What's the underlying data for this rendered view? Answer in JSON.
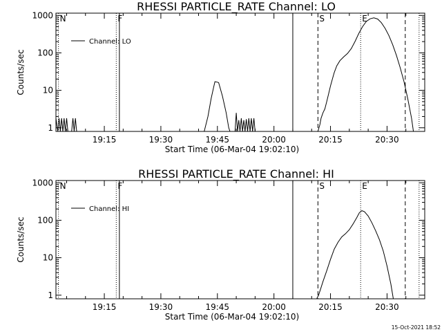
{
  "footer_stamp": "15-Oct-2021 18:52",
  "chart_data": [
    {
      "type": "line",
      "title": "RHESSI PARTICLE_RATE Channel: LO",
      "xlabel": "Start Time (06-Mar-04 19:02:10)",
      "ylabel": "Counts/sec",
      "y_scale": "log",
      "xlim": [
        "19:02:10",
        "20:40:00"
      ],
      "ylim": [
        0.8,
        1150
      ],
      "x_ticks": [
        {
          "t": "19:15",
          "label": "19:15"
        },
        {
          "t": "19:30",
          "label": "19:30"
        },
        {
          "t": "19:45",
          "label": "19:45"
        },
        {
          "t": "20:00",
          "label": "20:00"
        },
        {
          "t": "20:15",
          "label": "20:15"
        },
        {
          "t": "20:30",
          "label": "20:30"
        }
      ],
      "y_ticks": [
        {
          "v": 1,
          "label": "1"
        },
        {
          "v": 10,
          "label": "10"
        },
        {
          "v": 100,
          "label": "100"
        },
        {
          "v": 1000,
          "label": "1000"
        }
      ],
      "legend": {
        "entries": [
          "Channel: LO"
        ],
        "placement": "top-left"
      },
      "markers": [
        {
          "t": "19:02:50",
          "style": "dotted",
          "label": "N"
        },
        {
          "t": "19:18:10",
          "style": "dotted",
          "label": "F"
        },
        {
          "t": "19:19:00",
          "style": "solid",
          "label": ""
        },
        {
          "t": "20:05:00",
          "style": "solid",
          "label": ""
        },
        {
          "t": "20:11:40",
          "style": "dashed",
          "label": "S"
        },
        {
          "t": "20:23:00",
          "style": "dotted",
          "label": "E"
        },
        {
          "t": "20:34:50",
          "style": "dashed",
          "label": ""
        },
        {
          "t": "20:38:30",
          "style": "dotted",
          "label": ""
        }
      ],
      "series": [
        {
          "points": [
            [
              "19:02:10",
              1.8
            ],
            [
              "19:02:40",
              0.7
            ],
            [
              "19:03:00",
              1.8
            ],
            [
              "19:03:20",
              0.7
            ],
            [
              "19:03:40",
              1.8
            ],
            [
              "19:04:00",
              0.7
            ],
            [
              "19:04:20",
              1.8
            ],
            [
              "19:04:40",
              0.7
            ],
            [
              "19:05:00",
              1.8
            ],
            [
              "19:05:20",
              0.7
            ],
            [
              "19:06:20",
              0.7
            ],
            [
              "19:06:40",
              1.8
            ],
            [
              "19:07:00",
              0.7
            ],
            [
              "19:07:20",
              1.8
            ],
            [
              "19:07:40",
              0.7
            ],
            [
              "19:41:30",
              0.7
            ],
            [
              "19:42:30",
              2.0
            ],
            [
              "19:43:20",
              6.0
            ],
            [
              "19:44:00",
              12.0
            ],
            [
              "19:44:20",
              17.0
            ],
            [
              "19:45:00",
              16.5
            ],
            [
              "19:45:20",
              16.0
            ],
            [
              "19:46:20",
              7.0
            ],
            [
              "19:47:20",
              2.5
            ],
            [
              "19:48:00",
              1.0
            ],
            [
              "19:48:20",
              0.7
            ],
            [
              "19:49:40",
              0.7
            ],
            [
              "19:50:00",
              2.5
            ],
            [
              "19:50:20",
              0.7
            ],
            [
              "19:50:40",
              1.6
            ],
            [
              "19:51:00",
              0.7
            ],
            [
              "19:51:20",
              1.8
            ],
            [
              "19:51:40",
              0.7
            ],
            [
              "19:52:00",
              1.6
            ],
            [
              "19:52:20",
              0.7
            ],
            [
              "19:52:40",
              1.7
            ],
            [
              "19:53:00",
              0.7
            ],
            [
              "19:53:20",
              1.8
            ],
            [
              "19:53:40",
              0.7
            ],
            [
              "19:54:00",
              1.8
            ],
            [
              "19:54:20",
              0.7
            ],
            [
              "19:54:40",
              1.8
            ],
            [
              "19:55:00",
              0.7
            ],
            [
              "20:11:40",
              0.7
            ],
            [
              "20:12:10",
              1.2
            ],
            [
              "20:12:30",
              1.8
            ],
            [
              "20:13:00",
              2.5
            ],
            [
              "20:13:30",
              3.2
            ],
            [
              "20:14:00",
              5.0
            ],
            [
              "20:14:30",
              8.0
            ],
            [
              "20:15:00",
              13.0
            ],
            [
              "20:15:30",
              20.0
            ],
            [
              "20:16:00",
              30.0
            ],
            [
              "20:16:40",
              45.0
            ],
            [
              "20:17:30",
              62.0
            ],
            [
              "20:18:30",
              78.0
            ],
            [
              "20:19:30",
              96.0
            ],
            [
              "20:20:30",
              130.0
            ],
            [
              "20:21:30",
              200.0
            ],
            [
              "20:22:30",
              330.0
            ],
            [
              "20:23:30",
              500.0
            ],
            [
              "20:24:30",
              690.0
            ],
            [
              "20:25:30",
              810.0
            ],
            [
              "20:26:30",
              860.0
            ],
            [
              "20:27:30",
              800.0
            ],
            [
              "20:28:30",
              640.0
            ],
            [
              "20:29:30",
              450.0
            ],
            [
              "20:30:30",
              290.0
            ],
            [
              "20:31:30",
              165.0
            ],
            [
              "20:32:30",
              85.0
            ],
            [
              "20:33:30",
              40.0
            ],
            [
              "20:34:30",
              17.0
            ],
            [
              "20:35:30",
              6.0
            ],
            [
              "20:36:30",
              1.8
            ],
            [
              "20:37:00",
              0.7
            ]
          ]
        }
      ]
    },
    {
      "type": "line",
      "title": "RHESSI PARTICLE_RATE Channel: HI",
      "xlabel": "Start Time (06-Mar-04 19:02:10)",
      "ylabel": "Counts/sec",
      "y_scale": "log",
      "xlim": [
        "19:02:10",
        "20:40:00"
      ],
      "ylim": [
        0.8,
        1150
      ],
      "x_ticks": [
        {
          "t": "19:15",
          "label": "19:15"
        },
        {
          "t": "19:30",
          "label": "19:30"
        },
        {
          "t": "19:45",
          "label": "19:45"
        },
        {
          "t": "20:00",
          "label": "20:00"
        },
        {
          "t": "20:15",
          "label": "20:15"
        },
        {
          "t": "20:30",
          "label": "20:30"
        }
      ],
      "y_ticks": [
        {
          "v": 1,
          "label": "1"
        },
        {
          "v": 10,
          "label": "10"
        },
        {
          "v": 100,
          "label": "100"
        },
        {
          "v": 1000,
          "label": "1000"
        }
      ],
      "legend": {
        "entries": [
          "Channel: HI"
        ],
        "placement": "top-left"
      },
      "markers": [
        {
          "t": "19:02:50",
          "style": "dotted",
          "label": "N"
        },
        {
          "t": "19:18:10",
          "style": "dotted",
          "label": "F"
        },
        {
          "t": "19:19:00",
          "style": "solid",
          "label": ""
        },
        {
          "t": "20:05:00",
          "style": "solid",
          "label": ""
        },
        {
          "t": "20:11:40",
          "style": "dashed",
          "label": "S"
        },
        {
          "t": "20:23:00",
          "style": "dotted",
          "label": "E"
        },
        {
          "t": "20:34:50",
          "style": "dashed",
          "label": ""
        },
        {
          "t": "20:38:30",
          "style": "dotted",
          "label": ""
        }
      ],
      "series": [
        {
          "points": [
            [
              "20:11:20",
              0.7
            ],
            [
              "20:11:50",
              1.0
            ],
            [
              "20:12:30",
              1.6
            ],
            [
              "20:13:00",
              2.3
            ],
            [
              "20:14:00",
              4.5
            ],
            [
              "20:15:00",
              9.0
            ],
            [
              "20:16:00",
              17.0
            ],
            [
              "20:17:00",
              26.0
            ],
            [
              "20:18:00",
              36.0
            ],
            [
              "20:19:00",
              44.0
            ],
            [
              "20:20:00",
              56.0
            ],
            [
              "20:21:00",
              80.0
            ],
            [
              "20:22:00",
              120.0
            ],
            [
              "20:22:40",
              160.0
            ],
            [
              "20:23:20",
              180.0
            ],
            [
              "20:24:00",
              170.0
            ],
            [
              "20:25:00",
              130.0
            ],
            [
              "20:26:00",
              85.0
            ],
            [
              "20:27:00",
              52.0
            ],
            [
              "20:28:00",
              30.0
            ],
            [
              "20:29:00",
              15.0
            ],
            [
              "20:30:00",
              6.0
            ],
            [
              "20:31:00",
              2.0
            ],
            [
              "20:31:40",
              0.7
            ]
          ]
        }
      ]
    }
  ]
}
